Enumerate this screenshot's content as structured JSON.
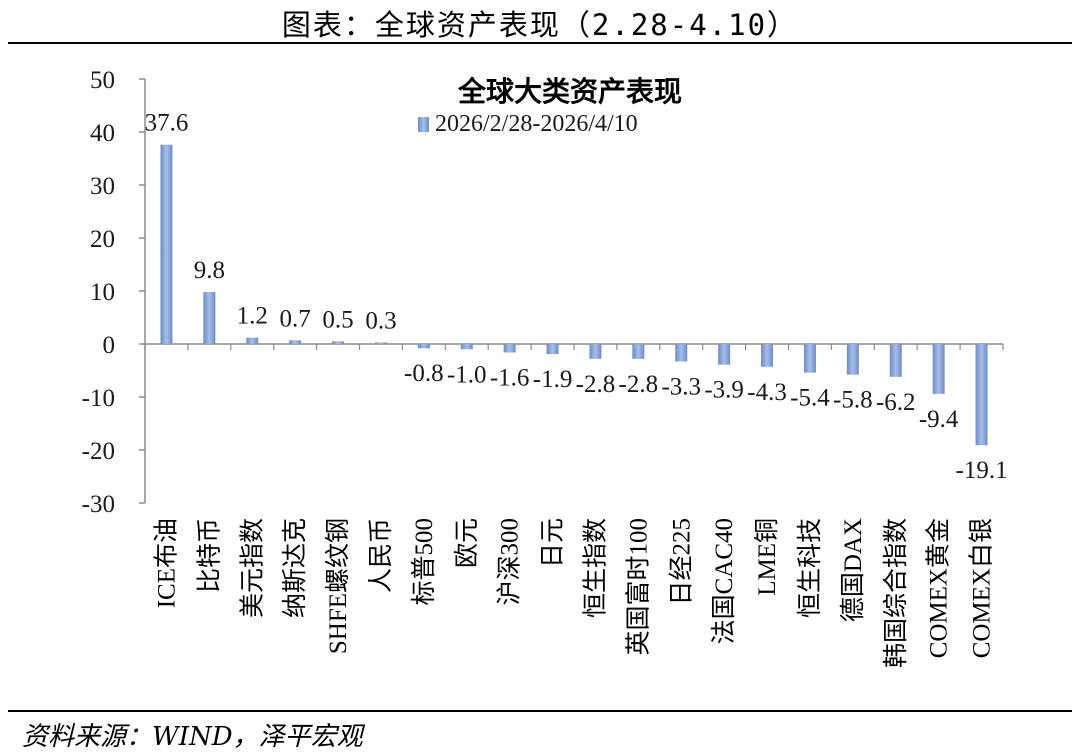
{
  "header": {
    "title": "图表：全球资产表现（2.28-4.10）"
  },
  "footer": {
    "source": "资料来源：WIND，泽平宏观"
  },
  "colors": {
    "bar": "#8DA9DB",
    "bar_dark": "#6C8CC8",
    "axis": "#808080"
  },
  "chart_data": {
    "type": "bar",
    "title": "全球大类资产表现",
    "legend_position": "top",
    "grid": false,
    "categories": [
      "ICE布油",
      "比特币",
      "美元指数",
      "纳斯达克",
      "SHFE螺纹钢",
      "人民币",
      "标普500",
      "欧元",
      "沪深300",
      "日元",
      "恒生指数",
      "英国富时100",
      "日经225",
      "法国CAC40",
      "LME铜",
      "恒生科技",
      "德国DAX",
      "韩国综合指数",
      "COMEX黄金",
      "COMEX白银"
    ],
    "series": [
      {
        "name": "2026/2/28-2026/4/10",
        "values": [
          37.6,
          9.8,
          1.2,
          0.7,
          0.5,
          0.3,
          -0.8,
          -1.0,
          -1.6,
          -1.9,
          -2.8,
          -2.8,
          -3.3,
          -3.9,
          -4.3,
          -5.4,
          -5.8,
          -6.2,
          -9.4,
          -19.1
        ],
        "labels": [
          "37.6",
          "9.8",
          "1.2",
          "0.7",
          "0.5",
          "0.3",
          "-0.8",
          "-1.0",
          "-1.6",
          "-1.9",
          "-2.8",
          "-2.8",
          "-3.3",
          "-3.9",
          "-4.3",
          "-5.4",
          "-5.8",
          "-6.2",
          "-9.4",
          "-19.1"
        ]
      }
    ],
    "ylim": [
      -30,
      50
    ],
    "yticks": [
      50,
      40,
      30,
      20,
      10,
      0,
      -10,
      -20,
      -30
    ]
  }
}
